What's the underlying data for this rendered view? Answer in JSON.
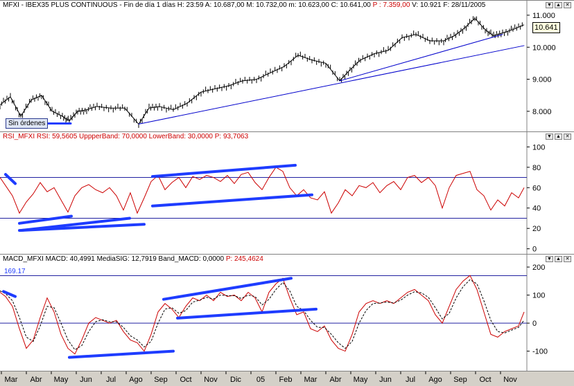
{
  "price_pane": {
    "header": [
      {
        "text": "MFXI - IBEX35 PLUS CONTINUOUS - Fin de día 1 días  H: 23:59  A: 10.687,00  M: 10.732,00  m: 10.623,00  C: 10.641,00  ",
        "color": "#000000"
      },
      {
        "text": "P : 7.359,00",
        "color": "#cc0000"
      },
      {
        "text": "  V: 10.921  F: 28/11/2005",
        "color": "#000000"
      }
    ],
    "last_price": "10.641",
    "no_orders_label": "Sin órdenes"
  },
  "rsi_pane": {
    "header": [
      {
        "text": "RSI_MFXI  RSI: 59,5605  UppperBand: 70,0000  LowerBand: 30,0000  ",
        "color": "#cc0000"
      },
      {
        "text": "P: 93,7063",
        "color": "#cc0000"
      }
    ]
  },
  "macd_pane": {
    "header": [
      {
        "text": "MACD_MFXI  MACD: 40,4991  MediaSIG: 12,7919  Band_MACD: 0,0000  ",
        "color": "#000000"
      },
      {
        "text": "P: 245,4624",
        "color": "#cc0000"
      }
    ],
    "level_label": "169.17"
  },
  "header_buttons": [
    "▼",
    "▲",
    "✕"
  ],
  "chart_data": [
    {
      "type": "line",
      "title": "MFXI - IBEX35 PLUS CONTINUOUS",
      "x_ticks": [
        "Mar",
        "Abr",
        "May",
        "Jun",
        "Jul",
        "Ago",
        "Sep",
        "Oct",
        "Nov",
        "Dic",
        "05",
        "Feb",
        "Mar",
        "Abr",
        "May",
        "Jun",
        "Jul",
        "Ago",
        "Sep",
        "Oct",
        "Nov"
      ],
      "y_ticks": [
        "8.000",
        "9.000",
        "10.000",
        "11.000"
      ],
      "ylim": [
        7350,
        11150
      ],
      "series": [
        {
          "name": "MFXI",
          "color": "#000000",
          "x": [
            0,
            15,
            30,
            45,
            60,
            75,
            90,
            100,
            112,
            125,
            140,
            160,
            180,
            200,
            215,
            230,
            250,
            270,
            290,
            310,
            330,
            350,
            370,
            390,
            410,
            430,
            450,
            470,
            490,
            505,
            520,
            540,
            560,
            580,
            600,
            620,
            640,
            655,
            670,
            685,
            700,
            712,
            725,
            740,
            756
          ],
          "y": [
            8200,
            8450,
            7850,
            8350,
            8500,
            8000,
            7850,
            7700,
            8000,
            8050,
            8150,
            8100,
            8100,
            7600,
            8100,
            8150,
            8050,
            8250,
            8600,
            8700,
            8800,
            8950,
            9000,
            9200,
            9400,
            9750,
            9600,
            9500,
            8950,
            9300,
            9600,
            9800,
            9900,
            10300,
            10400,
            10200,
            10200,
            10350,
            10600,
            10900,
            10550,
            10350,
            10450,
            10550,
            10700
          ]
        }
      ],
      "trendlines": [
        {
          "x": [
            200,
            756
          ],
          "y": [
            7600,
            10050
          ],
          "color": "#0000cc",
          "width": 1
        },
        {
          "x": [
            490,
            725
          ],
          "y": [
            8950,
            10400
          ],
          "color": "#0000cc",
          "width": 1
        },
        {
          "x": [
            60,
            102
          ],
          "y": [
            7620,
            7620
          ],
          "color": "#1e3cff",
          "width": 3
        }
      ]
    },
    {
      "type": "line",
      "title": "RSI_MFXI",
      "y_ticks": [
        "0",
        "20",
        "40",
        "60",
        "80",
        "100"
      ],
      "ylim": [
        -5,
        105
      ],
      "bands": [
        70,
        30
      ],
      "series": [
        {
          "name": "RSI",
          "color": "#cc0000",
          "x": [
            0,
            8,
            18,
            28,
            38,
            48,
            58,
            68,
            78,
            88,
            98,
            108,
            118,
            128,
            138,
            148,
            158,
            168,
            178,
            188,
            198,
            208,
            218,
            228,
            238,
            248,
            258,
            268,
            278,
            288,
            298,
            308,
            318,
            328,
            338,
            348,
            358,
            368,
            378,
            388,
            398,
            408,
            418,
            428,
            438,
            448,
            458,
            468,
            478,
            488,
            498,
            508,
            518,
            528,
            538,
            548,
            558,
            568,
            578,
            588,
            598,
            608,
            618,
            628,
            638,
            648,
            658,
            668,
            678,
            688,
            698,
            708,
            718,
            728,
            738,
            748,
            756
          ],
          "y": [
            70,
            62,
            52,
            35,
            46,
            54,
            65,
            56,
            60,
            48,
            36,
            52,
            60,
            63,
            58,
            55,
            60,
            52,
            38,
            55,
            35,
            50,
            66,
            72,
            58,
            65,
            70,
            60,
            71,
            68,
            72,
            70,
            66,
            72,
            64,
            73,
            75,
            65,
            58,
            70,
            80,
            76,
            60,
            52,
            58,
            50,
            48,
            56,
            35,
            45,
            58,
            52,
            62,
            60,
            65,
            55,
            62,
            66,
            58,
            70,
            72,
            65,
            70,
            62,
            40,
            60,
            72,
            74,
            76,
            58,
            52,
            38,
            48,
            42,
            55,
            50,
            60
          ]
        }
      ],
      "trendlines": [
        {
          "x": [
            8,
            22
          ],
          "y": [
            73,
            64
          ],
          "color": "#1e3cff",
          "width": 4
        },
        {
          "x": [
            28,
            103
          ],
          "y": [
            25,
            32
          ],
          "color": "#1e3cff",
          "width": 4
        },
        {
          "x": [
            30,
            187
          ],
          "y": [
            18,
            30
          ],
          "color": "#1e3cff",
          "width": 4
        },
        {
          "x": [
            28,
            208
          ],
          "y": [
            18,
            24
          ],
          "color": "#1e3cff",
          "width": 4
        },
        {
          "x": [
            220,
            426
          ],
          "y": [
            71,
            82
          ],
          "color": "#1e3cff",
          "width": 4
        },
        {
          "x": [
            220,
            450
          ],
          "y": [
            42,
            53
          ],
          "color": "#1e3cff",
          "width": 4
        }
      ]
    },
    {
      "type": "line",
      "title": "MACD_MFXI",
      "y_ticks": [
        "-100",
        "0",
        "100",
        "200"
      ],
      "ylim": [
        -165,
        210
      ],
      "bands": [
        169.17,
        0
      ],
      "series": [
        {
          "name": "MACD",
          "color": "#cc0000",
          "x": [
            0,
            8,
            18,
            28,
            38,
            48,
            58,
            68,
            78,
            88,
            98,
            108,
            118,
            128,
            138,
            148,
            158,
            168,
            178,
            188,
            198,
            208,
            218,
            228,
            238,
            248,
            258,
            268,
            278,
            288,
            298,
            308,
            318,
            328,
            338,
            348,
            358,
            368,
            378,
            388,
            398,
            408,
            418,
            428,
            438,
            448,
            458,
            468,
            478,
            488,
            498,
            508,
            518,
            528,
            538,
            548,
            558,
            568,
            578,
            588,
            598,
            608,
            618,
            628,
            638,
            648,
            658,
            668,
            678,
            688,
            698,
            708,
            718,
            728,
            738,
            748,
            756
          ],
          "y": [
            110,
            95,
            60,
            -20,
            -90,
            -60,
            20,
            90,
            40,
            -40,
            -90,
            -110,
            -60,
            0,
            20,
            10,
            0,
            10,
            -30,
            -60,
            -70,
            -100,
            -40,
            40,
            70,
            50,
            20,
            60,
            90,
            80,
            100,
            80,
            110,
            95,
            100,
            80,
            110,
            90,
            40,
            110,
            140,
            160,
            90,
            30,
            40,
            -20,
            -30,
            -10,
            -60,
            -90,
            -100,
            -40,
            40,
            70,
            80,
            70,
            80,
            70,
            90,
            110,
            120,
            100,
            80,
            30,
            0,
            60,
            120,
            150,
            170,
            120,
            40,
            -40,
            -50,
            -30,
            -20,
            -10,
            40
          ]
        },
        {
          "name": "MediaSIG",
          "color": "#000000",
          "dash": true,
          "x": [
            0,
            8,
            18,
            28,
            38,
            48,
            58,
            68,
            78,
            88,
            98,
            108,
            118,
            128,
            138,
            148,
            158,
            168,
            178,
            188,
            198,
            208,
            218,
            228,
            238,
            248,
            258,
            268,
            278,
            288,
            298,
            308,
            318,
            328,
            338,
            348,
            358,
            368,
            378,
            388,
            398,
            408,
            418,
            428,
            438,
            448,
            458,
            468,
            478,
            488,
            498,
            508,
            518,
            528,
            538,
            548,
            558,
            568,
            578,
            588,
            598,
            608,
            618,
            628,
            638,
            648,
            658,
            668,
            678,
            688,
            698,
            708,
            718,
            728,
            738,
            748,
            756
          ],
          "y": [
            115,
            105,
            80,
            20,
            -50,
            -65,
            -10,
            60,
            55,
            0,
            -60,
            -95,
            -80,
            -30,
            5,
            12,
            5,
            5,
            -15,
            -45,
            -60,
            -85,
            -65,
            0,
            50,
            55,
            35,
            45,
            75,
            82,
            92,
            86,
            100,
            98,
            98,
            88,
            100,
            95,
            65,
            85,
            120,
            145,
            115,
            60,
            45,
            10,
            -15,
            -15,
            -40,
            -70,
            -90,
            -65,
            0,
            45,
            70,
            72,
            75,
            72,
            82,
            100,
            112,
            108,
            92,
            55,
            15,
            35,
            90,
            130,
            155,
            140,
            80,
            10,
            -30,
            -35,
            -25,
            -15,
            10
          ]
        }
      ],
      "trendlines": [
        {
          "x": [
            5,
            22
          ],
          "y": [
            113,
            95
          ],
          "color": "#1e3cff",
          "width": 4
        },
        {
          "x": [
            100,
            250
          ],
          "y": [
            -122,
            -100
          ],
          "color": "#1e3cff",
          "width": 4
        },
        {
          "x": [
            236,
            420
          ],
          "y": [
            85,
            160
          ],
          "color": "#1e3cff",
          "width": 4
        },
        {
          "x": [
            256,
            456
          ],
          "y": [
            18,
            50
          ],
          "color": "#1e3cff",
          "width": 4
        }
      ]
    }
  ]
}
